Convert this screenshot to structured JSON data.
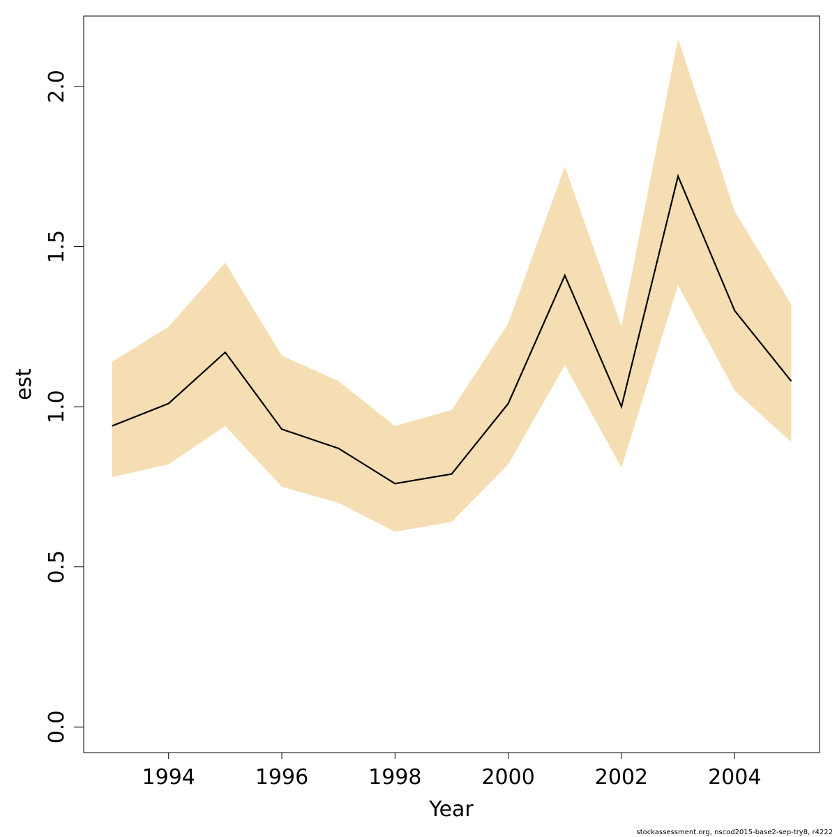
{
  "chart_data": {
    "type": "line",
    "xlabel": "Year",
    "ylabel": "est",
    "x": [
      1993,
      1994,
      1995,
      1996,
      1997,
      1998,
      1999,
      2000,
      2001,
      2002,
      2003,
      2004,
      2005
    ],
    "series": [
      {
        "values": [
          0.94,
          1.01,
          1.17,
          0.93,
          0.87,
          0.76,
          0.79,
          1.01,
          1.41,
          1.0,
          1.72,
          1.3,
          1.08
        ],
        "color": "#000000"
      }
    ],
    "band": {
      "lower": [
        0.78,
        0.82,
        0.94,
        0.75,
        0.7,
        0.61,
        0.64,
        0.82,
        1.13,
        0.81,
        1.38,
        1.05,
        0.89
      ],
      "upper": [
        1.14,
        1.25,
        1.45,
        1.16,
        1.08,
        0.94,
        0.99,
        1.26,
        1.75,
        1.25,
        2.15,
        1.61,
        1.32
      ],
      "color": "#F5DEB3"
    },
    "xlim": [
      1992.5,
      2005.5
    ],
    "ylim": [
      -0.08,
      2.22
    ],
    "xticks": [
      "1994",
      "1996",
      "1998",
      "2000",
      "2002",
      "2004"
    ],
    "yticks": [
      "0.0",
      "0.5",
      "1.0",
      "1.5",
      "2.0"
    ],
    "grid": false
  },
  "footer": {
    "note": "stockassessment.org, nscod2015-base2-sep-try8, r4222"
  }
}
